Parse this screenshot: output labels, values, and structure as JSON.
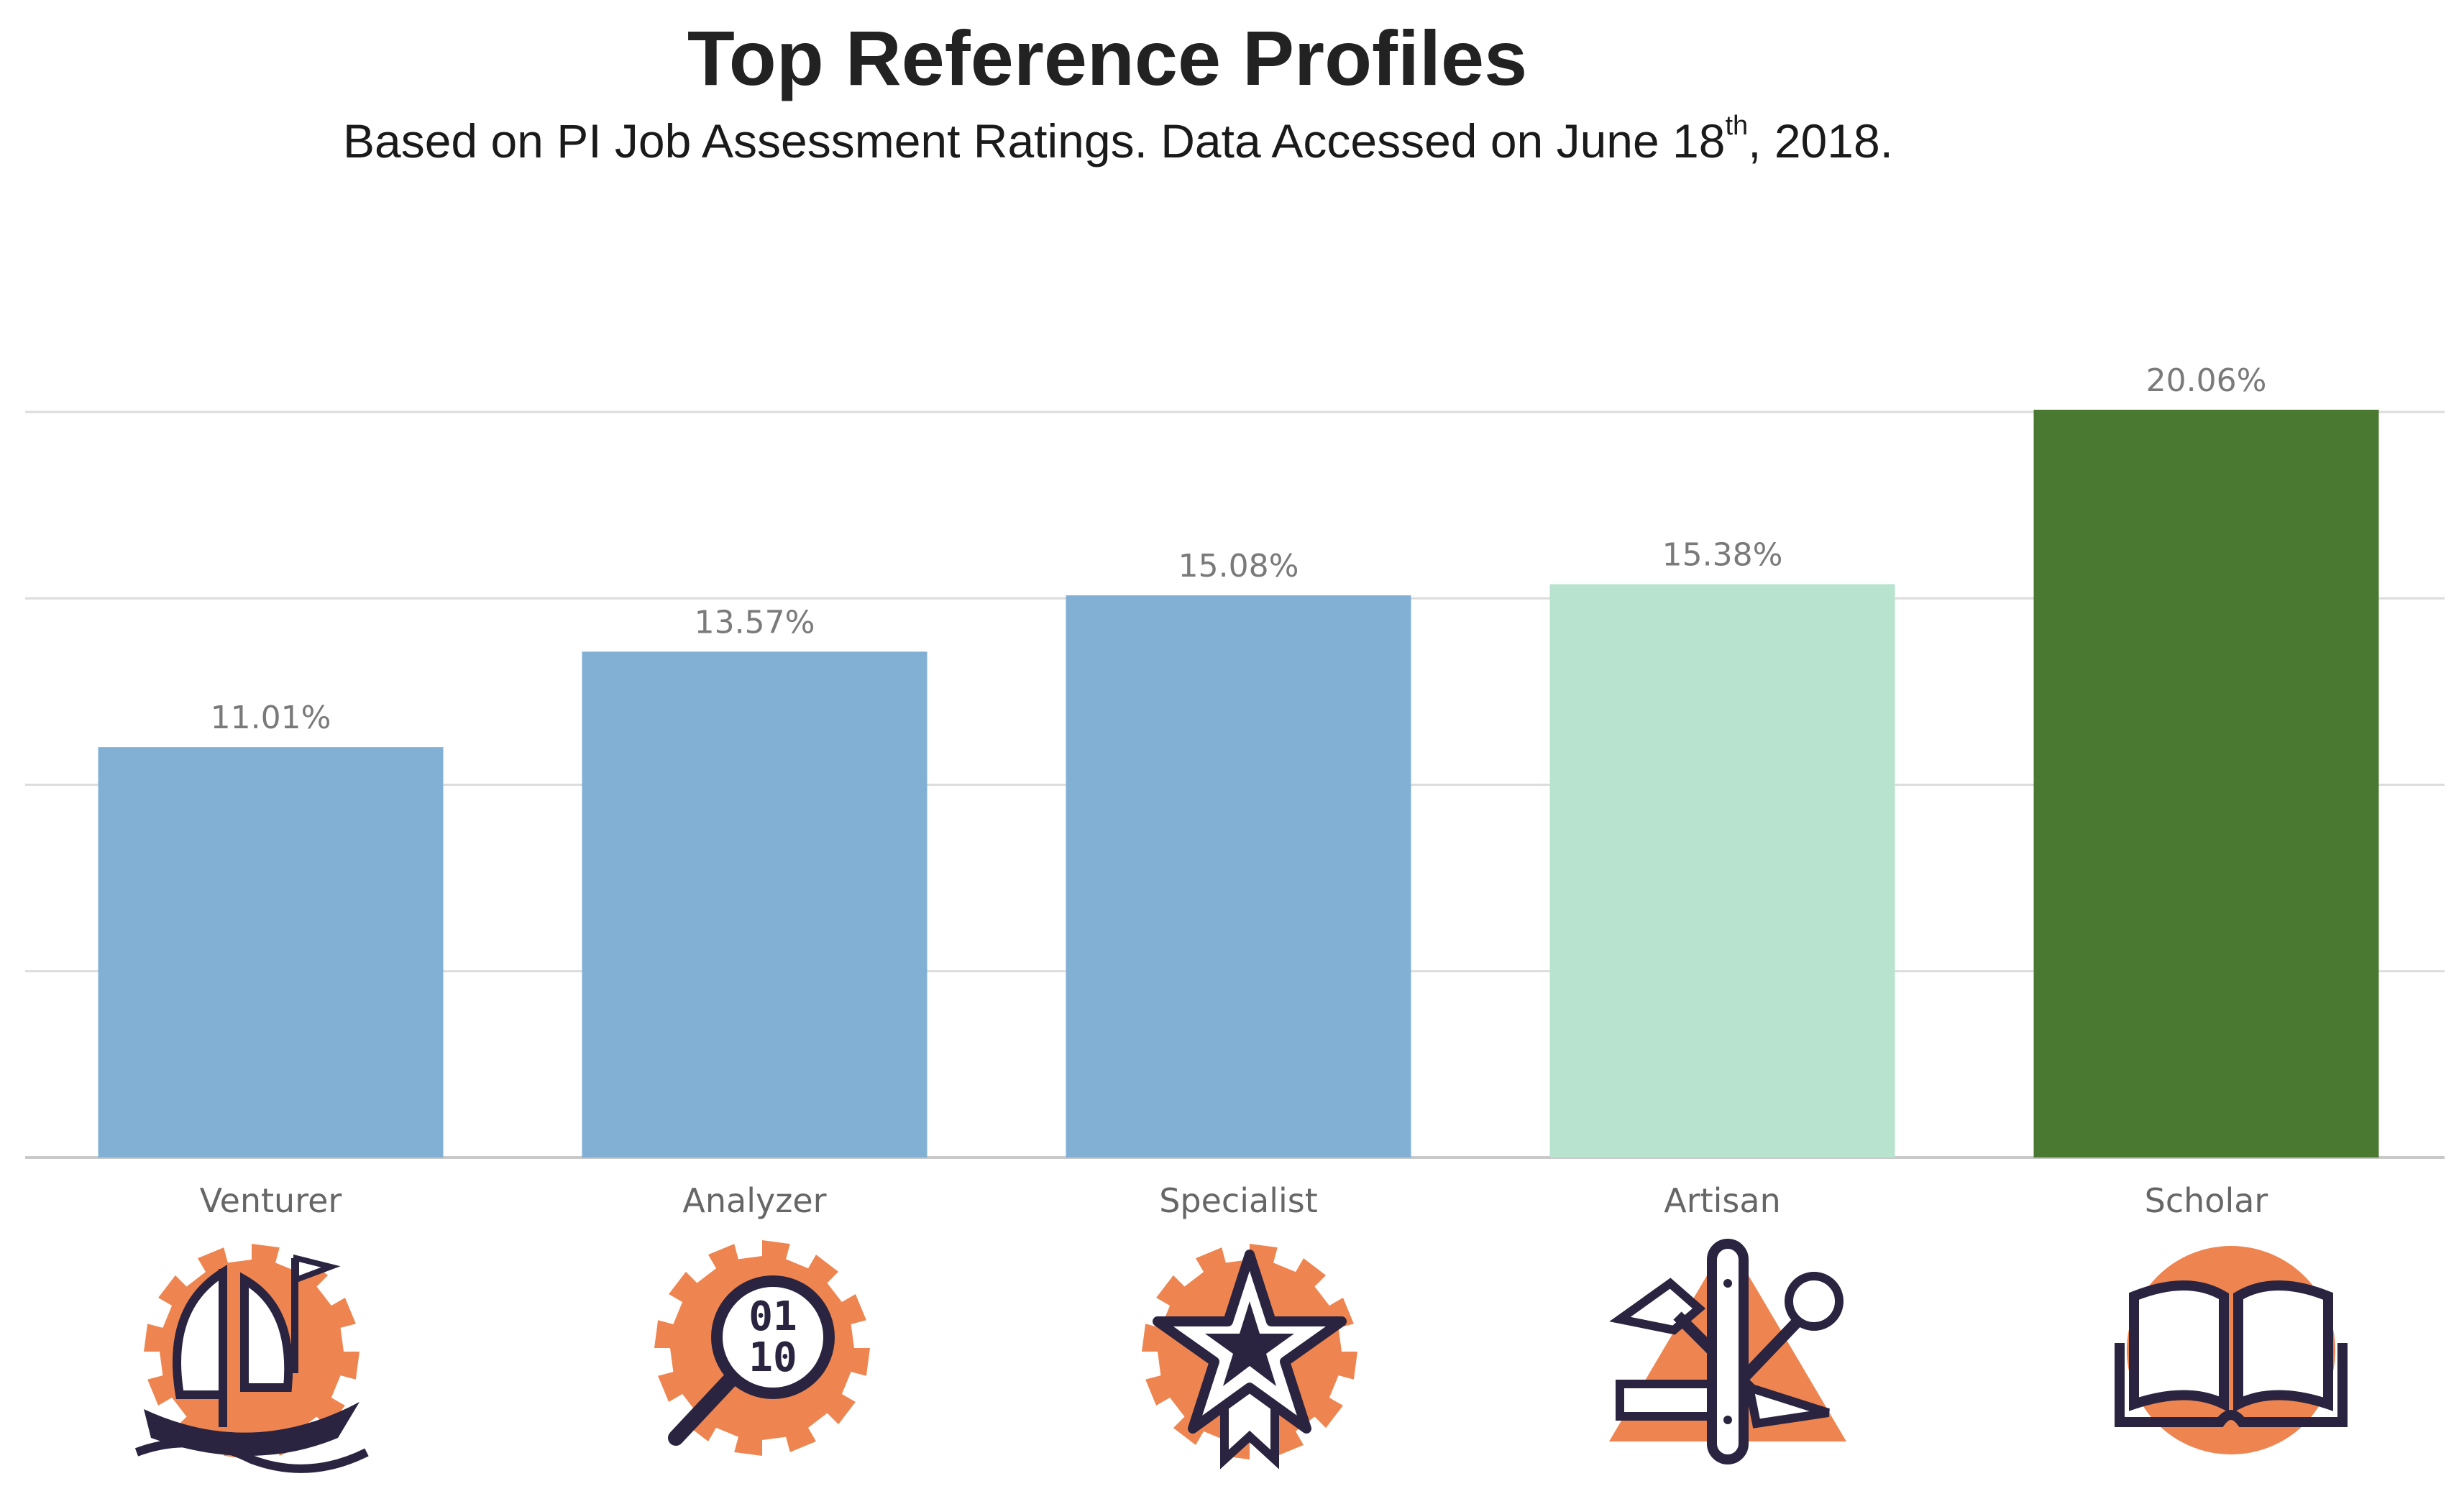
{
  "title": "Top Reference Profiles",
  "subtitle": {
    "pre": "Based on PI Job Assessment Ratings. Data Accessed on June 18",
    "sup": "th",
    "post": ", 2018."
  },
  "chart_data": {
    "type": "bar",
    "categories": [
      "Venturer",
      "Analyzer",
      "Specialist",
      "Artisan",
      "Scholar"
    ],
    "values": [
      11.01,
      13.57,
      15.08,
      15.38,
      20.06
    ],
    "value_labels": [
      "11.01%",
      "13.57%",
      "15.08%",
      "15.38%",
      "20.06%"
    ],
    "colors": [
      "#82b0d5",
      "#82b0d5",
      "#82b0d5",
      "#b8e3cf",
      "#4a7a32"
    ],
    "ylim": [
      0,
      20
    ],
    "grid": true,
    "xlabel": "",
    "ylabel": ""
  },
  "icons": [
    "ship-icon",
    "binary-magnifier-icon",
    "star-ribbon-icon",
    "multi-tool-icon",
    "open-book-icon"
  ],
  "icon_colors": {
    "accent": "#ee8550",
    "ink": "#2a2440"
  }
}
